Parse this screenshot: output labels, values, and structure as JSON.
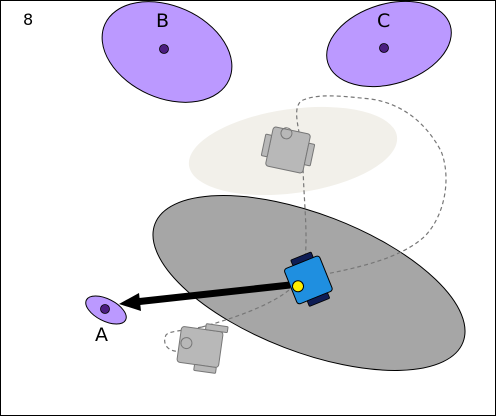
{
  "frame_number": "8",
  "landmarks": [
    {
      "id": "A",
      "label": "A"
    },
    {
      "id": "B",
      "label": "B"
    },
    {
      "id": "C",
      "label": "C"
    }
  ],
  "colors": {
    "landmark_fill": "#bb99ff",
    "landmark_dot": "#4b1d80",
    "robot_body": "#1f8fe0",
    "robot_wheels": "#0f1d55",
    "robot_sensor": "#ffee00",
    "past_robot": "#b8b8b8",
    "current_uncertainty": "#a6a6a6",
    "past_uncertainty": "#f2f0ea",
    "trajectory": "#777777",
    "measurement_arrow": "#000000"
  },
  "icons": {
    "robot": "robot-icon",
    "past_robot": "robot-ghost-icon",
    "arrow": "arrow-icon"
  }
}
